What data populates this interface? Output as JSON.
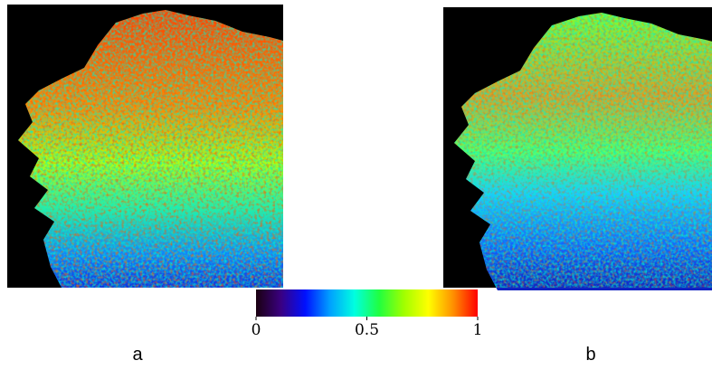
{
  "panels": [
    {
      "label": "a"
    },
    {
      "label": "b"
    }
  ],
  "colorbar": {
    "lim": [
      0,
      1
    ],
    "ticks": [
      0,
      0.5,
      1
    ],
    "colormap": [
      "#1a0010",
      "#3a0080",
      "#0010ff",
      "#00a0ff",
      "#00ffe0",
      "#20ff40",
      "#a0ff00",
      "#ffff00",
      "#ff9000",
      "#ff0000"
    ]
  }
}
